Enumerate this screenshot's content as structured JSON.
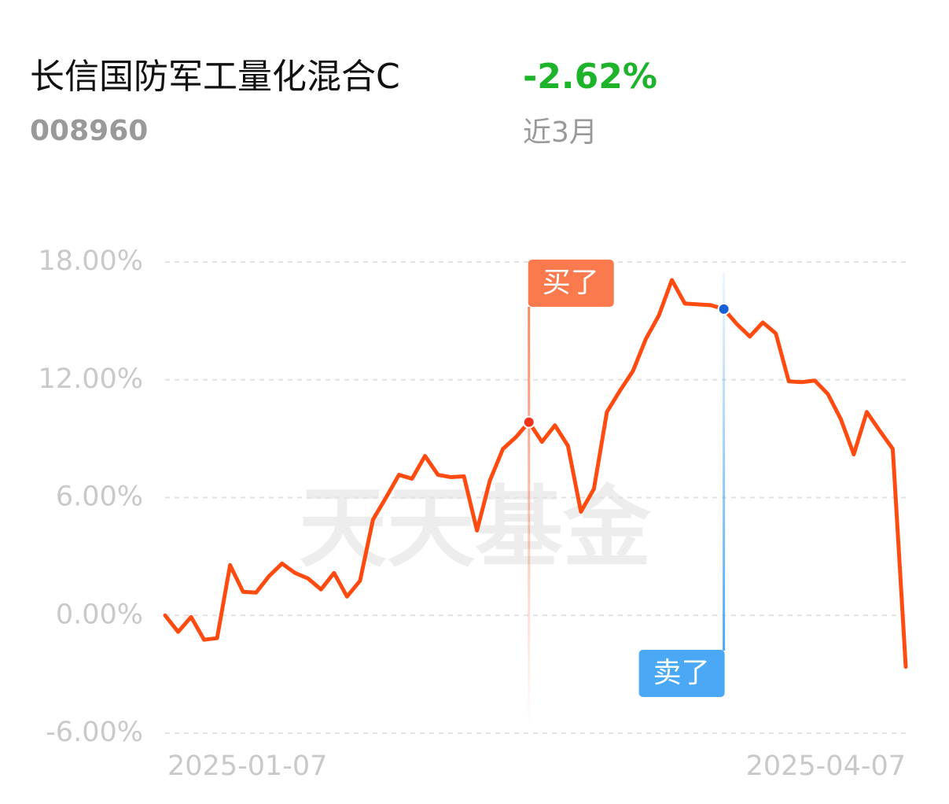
{
  "header": {
    "title": "长信国防军工量化混合C",
    "code": "008960",
    "return": "-2.62%",
    "period": "近3月"
  },
  "chart_data": {
    "type": "line",
    "watermark": "天天基金",
    "categories": [
      "2025-01-07",
      null,
      null,
      null,
      null,
      null,
      null,
      null,
      null,
      null,
      null,
      null,
      null,
      null,
      null,
      null,
      null,
      null,
      null,
      null,
      null,
      null,
      null,
      null,
      null,
      null,
      null,
      null,
      null,
      null,
      null,
      null,
      null,
      null,
      null,
      null,
      null,
      null,
      null,
      null,
      null,
      null,
      null,
      null,
      null,
      null,
      null,
      null,
      null,
      null,
      null,
      null,
      null,
      null,
      null,
      null,
      null,
      "2025-04-07"
    ],
    "values": [
      0,
      -0.84,
      -0.08,
      -1.24,
      -1.16,
      2.56,
      1.2,
      1.16,
      2.0,
      2.64,
      2.16,
      1.88,
      1.32,
      2.16,
      0.96,
      1.76,
      4.88,
      6.0,
      7.16,
      6.96,
      8.12,
      7.16,
      7.04,
      7.08,
      4.32,
      6.88,
      8.48,
      9.08,
      9.84,
      8.84,
      9.68,
      8.64,
      5.28,
      6.44,
      10.36,
      11.44,
      12.44,
      14.08,
      15.28,
      17.08,
      15.88,
      15.84,
      15.8,
      15.6,
      14.84,
      14.2,
      14.92,
      14.36,
      11.92,
      11.88,
      11.96,
      11.28,
      10.0,
      8.2,
      10.36,
      9.4,
      8.48,
      -2.62
    ],
    "color": "#ff4a10",
    "ylim": [
      -6,
      18
    ],
    "yticks": [
      {
        "value": 18,
        "label": "18.00%"
      },
      {
        "value": 12,
        "label": "12.00%"
      },
      {
        "value": 6,
        "label": "6.00%"
      },
      {
        "value": 0,
        "label": "0.00%"
      },
      {
        "value": -6,
        "label": "-6.00%"
      }
    ],
    "grid": true,
    "annotations": [
      {
        "label": "买了",
        "index": 28,
        "color": "#fa7a4e"
      },
      {
        "label": "卖了",
        "index": 43,
        "color": "#4aa8f5"
      }
    ]
  }
}
